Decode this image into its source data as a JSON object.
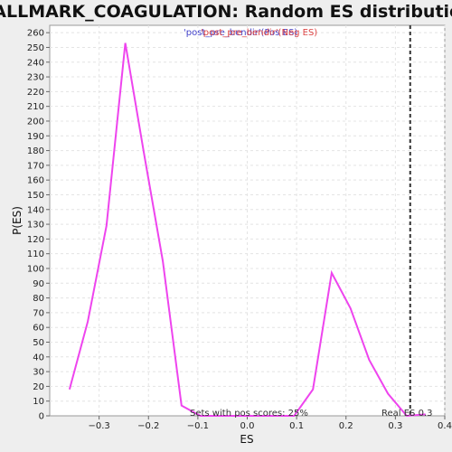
{
  "chart_data": {
    "type": "line",
    "title": "HALLMARK_COAGULATION: Random ES distribution",
    "xlabel": "ES",
    "ylabel": "P(ES)",
    "xlim": [
      -0.4,
      0.4
    ],
    "ylim": [
      0,
      265
    ],
    "xticks": [
      -0.3,
      -0.2,
      -0.1,
      0.0,
      0.1,
      0.2,
      0.3,
      0.4
    ],
    "xtick_labels": [
      "−0.3",
      "−0.2",
      "−0.1",
      "0.0",
      "0.1",
      "0.2",
      "0.3",
      "0.4"
    ],
    "yticks": [
      0,
      10,
      20,
      30,
      40,
      50,
      60,
      70,
      80,
      90,
      100,
      110,
      120,
      130,
      140,
      150,
      160,
      170,
      180,
      190,
      200,
      210,
      220,
      230,
      240,
      250,
      260
    ],
    "grid": true,
    "series": [
      {
        "color": "#ee44ee",
        "x": [
          -0.36,
          -0.323,
          -0.285,
          -0.247,
          -0.209,
          -0.171,
          -0.133,
          -0.095,
          -0.057,
          -0.019,
          0.019,
          0.057,
          0.095,
          0.133,
          0.171,
          0.209,
          0.247,
          0.285,
          0.323,
          0.361
        ],
        "y": [
          18,
          64,
          129,
          253,
          178,
          105,
          7,
          0,
          0,
          0,
          0,
          0,
          0,
          18,
          97,
          73,
          38,
          15,
          0,
          1
        ]
      }
    ],
    "reference_line": {
      "x": 0.33,
      "color": "#333333",
      "style": "dashed"
    },
    "legend": {
      "placement": "top-center",
      "items": [
        {
          "label": "'post_pre_bendir'(Pos ES)",
          "color": "#4444cc"
        },
        {
          "label": "'post_pre_bendir'(Neg ES)",
          "color": "#dd4444"
        }
      ]
    },
    "annotations": {
      "pos_scores": "Sets with pos scores: 25%",
      "real_es": "Real ES 0.3"
    }
  }
}
